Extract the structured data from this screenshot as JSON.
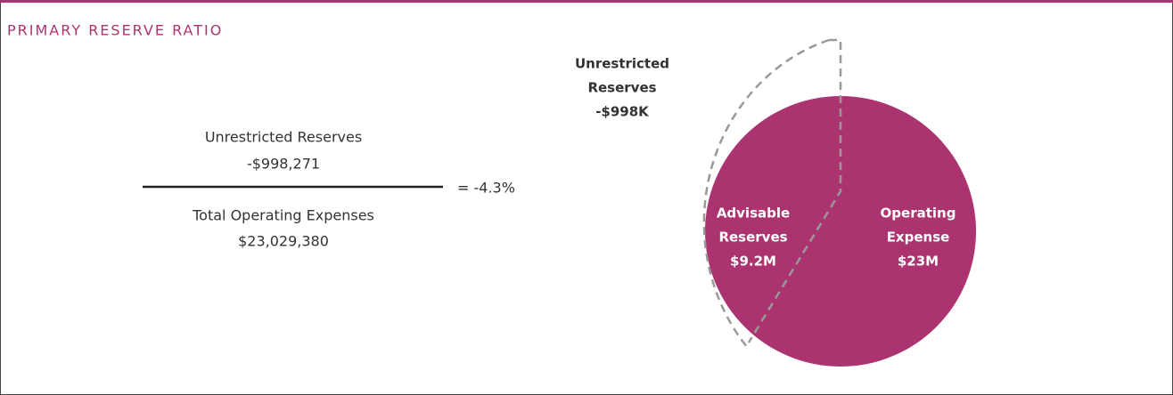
{
  "header": {
    "title": "PRIMARY RESERVE RATIO"
  },
  "fraction": {
    "numerator": {
      "label": "Unrestricted Reserves",
      "value": "-$998,271"
    },
    "denominator": {
      "label": "Total Operating Expenses",
      "value": "$23,029,380"
    },
    "result": "= -4.3%"
  },
  "diagram": {
    "unrestricted": [
      "Unrestricted",
      "Reserves",
      "-$998K"
    ],
    "advisable": [
      "Advisable",
      "Reserves",
      "$9.2M"
    ],
    "operating": [
      "Operating",
      "Expense",
      "$23M"
    ]
  }
}
